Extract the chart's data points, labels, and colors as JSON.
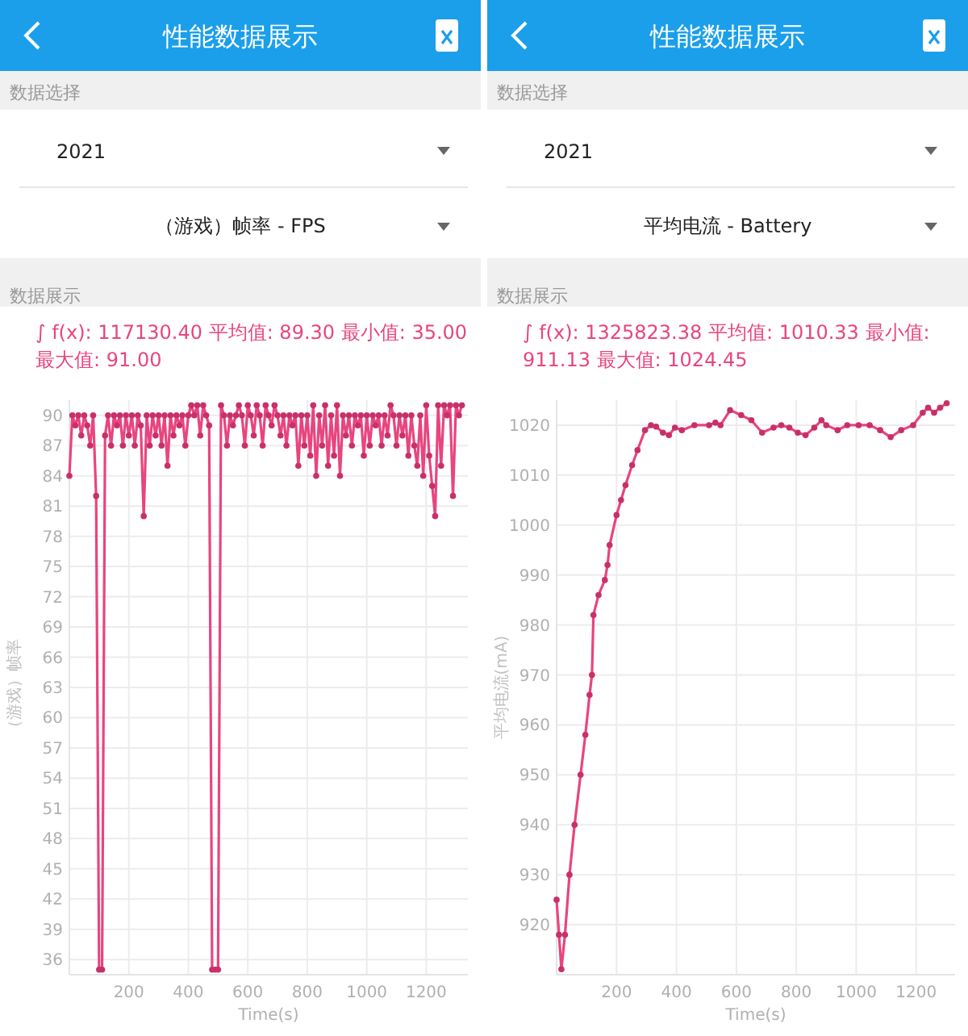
{
  "chart_data": [
    {
      "type": "line",
      "title": "性能数据展示",
      "subtitle": "（游戏）帧率 - FPS",
      "annotations": [
        "数据选择",
        "2021",
        "数据展示",
        "∫ f(x): 117130.40 平均值: 89.30 最小值: 35.00 最大值: 91.00"
      ],
      "xlabel": "Time(s)",
      "ylabel": "（游戏）帧率",
      "x": [
        0,
        10,
        20,
        30,
        40,
        50,
        60,
        70,
        80,
        90,
        100,
        110,
        120,
        130,
        140,
        150,
        160,
        170,
        180,
        190,
        200,
        210,
        220,
        230,
        240,
        250,
        260,
        270,
        280,
        290,
        300,
        310,
        320,
        330,
        340,
        350,
        360,
        370,
        380,
        390,
        400,
        410,
        420,
        430,
        440,
        450,
        460,
        470,
        480,
        490,
        500,
        510,
        520,
        530,
        540,
        550,
        560,
        570,
        580,
        590,
        600,
        610,
        620,
        630,
        640,
        650,
        660,
        670,
        680,
        690,
        700,
        710,
        720,
        730,
        740,
        750,
        760,
        770,
        780,
        790,
        800,
        810,
        820,
        830,
        840,
        850,
        860,
        870,
        880,
        890,
        900,
        910,
        920,
        930,
        940,
        950,
        960,
        970,
        980,
        990,
        1000,
        1010,
        1020,
        1030,
        1040,
        1050,
        1060,
        1070,
        1080,
        1090,
        1100,
        1110,
        1120,
        1130,
        1140,
        1150,
        1160,
        1170,
        1180,
        1190,
        1200,
        1210,
        1220,
        1230,
        1240,
        1250,
        1260,
        1270,
        1280,
        1290,
        1300,
        1310,
        1320
      ],
      "series": [
        {
          "color": "#e8457f",
          "values": [
            84,
            90,
            89,
            90,
            88,
            90,
            89,
            87,
            90,
            82,
            35,
            35,
            88,
            90,
            87,
            90,
            89,
            90,
            87,
            90,
            88,
            90,
            87,
            90,
            89,
            80,
            90,
            87,
            90,
            88,
            90,
            87,
            90,
            85,
            90,
            88,
            90,
            89,
            90,
            87,
            90,
            91,
            90,
            91,
            88,
            91,
            90,
            89,
            35,
            35,
            35,
            91,
            90,
            87,
            90,
            89,
            90,
            91,
            90,
            87,
            91,
            90,
            88,
            91,
            90,
            87,
            91,
            90,
            89,
            91,
            90,
            88,
            90,
            87,
            90,
            89,
            90,
            85,
            90,
            87,
            90,
            86,
            91,
            84,
            90,
            87,
            91,
            85,
            90,
            86,
            91,
            84,
            90,
            88,
            90,
            87,
            90,
            89,
            90,
            86,
            90,
            87,
            90,
            89,
            90,
            87,
            90,
            88,
            91,
            90,
            87,
            90,
            88,
            90,
            86,
            90,
            87,
            85,
            90,
            84,
            91,
            86,
            83,
            80,
            91,
            85,
            91,
            90,
            91,
            82,
            91,
            90,
            91
          ]
        }
      ],
      "xlim": [
        0,
        1340
      ],
      "ylim": [
        34.5,
        91.5
      ],
      "xticks": [
        200,
        400,
        600,
        800,
        1000,
        1200
      ],
      "yticks": [
        36,
        39,
        42,
        45,
        48,
        51,
        54,
        57,
        60,
        63,
        66,
        69,
        72,
        75,
        78,
        81,
        84,
        87,
        90
      ],
      "grid": true,
      "marker": "circle",
      "line_style": "solid"
    },
    {
      "type": "line",
      "title": "性能数据展示",
      "subtitle": "平均电流 - Battery",
      "annotations": [
        "数据选择",
        "2021",
        "数据展示",
        "∫ f(x): 1325823.38 平均值: 1010.33 最小值: 911.13 最大值: 1024.45"
      ],
      "xlabel": "Time(s)",
      "ylabel": "平均电流(mA)",
      "x": [
        0,
        8,
        16,
        28,
        43,
        60,
        80,
        96,
        110,
        118,
        123,
        140,
        161,
        170,
        177,
        200,
        215,
        230,
        252,
        270,
        295,
        315,
        332,
        355,
        375,
        395,
        418,
        460,
        509,
        530,
        547,
        579,
        616,
        650,
        686,
        724,
        750,
        777,
        805,
        831,
        860,
        884,
        900,
        938,
        970,
        1008,
        1045,
        1080,
        1115,
        1150,
        1190,
        1222,
        1240,
        1260,
        1280,
        1302
      ],
      "series": [
        {
          "color": "#e8457f",
          "values": [
            925,
            918,
            911.1,
            918,
            930,
            940,
            950,
            958,
            966,
            970,
            982,
            986,
            989,
            992,
            996,
            1002,
            1005,
            1008,
            1012,
            1015,
            1019,
            1020,
            1019.7,
            1018.5,
            1018,
            1019.5,
            1019,
            1020,
            1020,
            1020.5,
            1020,
            1023,
            1022,
            1021,
            1018.5,
            1019.5,
            1020,
            1019.5,
            1018.5,
            1018,
            1019.5,
            1021,
            1020,
            1019,
            1020,
            1020,
            1020,
            1019,
            1017.6,
            1019,
            1020,
            1022.5,
            1023.5,
            1022.5,
            1023.5,
            1024.4
          ]
        }
      ],
      "xlim": [
        0,
        1330
      ],
      "ylim": [
        910,
        1025
      ],
      "xticks": [
        200,
        400,
        600,
        800,
        1000,
        1200
      ],
      "yticks": [
        920,
        930,
        940,
        950,
        960,
        970,
        980,
        990,
        1000,
        1010,
        1020
      ],
      "grid": true,
      "marker": "circle",
      "line_style": "solid"
    }
  ]
}
